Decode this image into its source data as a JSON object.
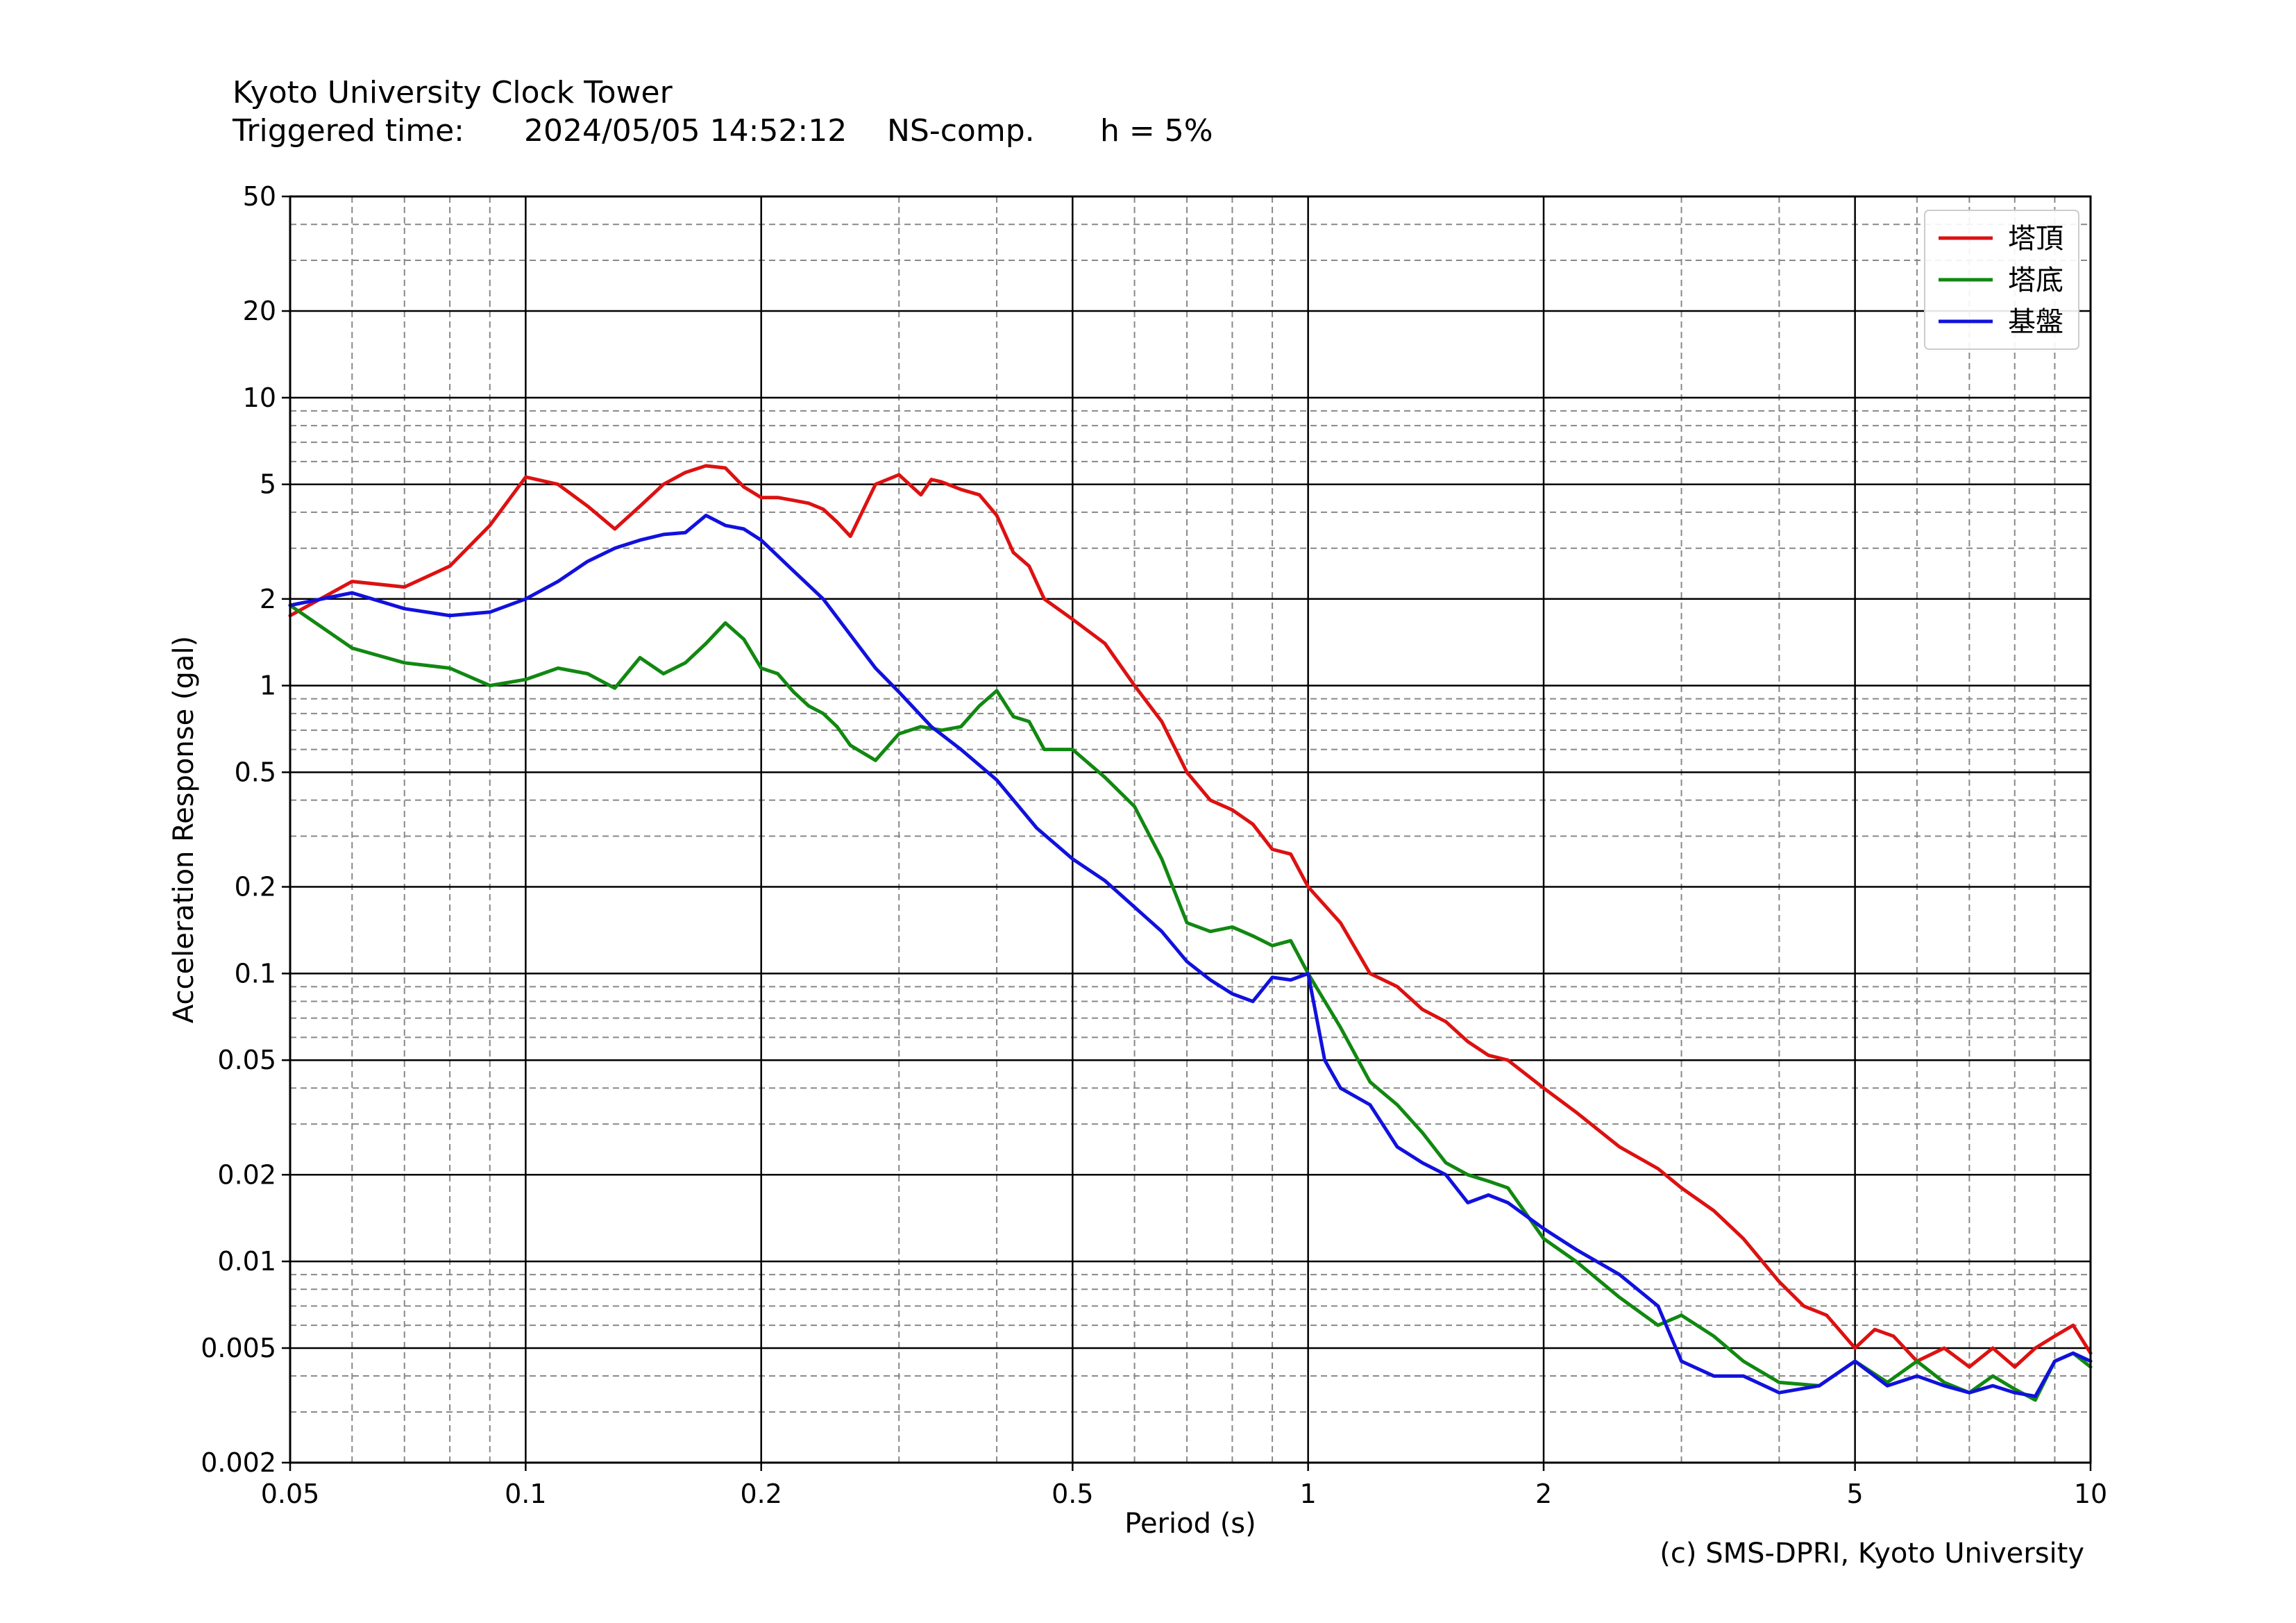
{
  "header": {
    "station": "Kyoto University Clock Tower",
    "triggered_label": "Triggered time:",
    "triggered_value": "2024/05/05 14:52:12",
    "component": "NS-comp.",
    "damping": "h = 5%"
  },
  "credit": "(c) SMS-DPRI, Kyoto University",
  "chart_data": {
    "type": "line",
    "title": "",
    "xlabel": "Period (s)",
    "ylabel": "Acceleration Response (gal)",
    "xscale": "log",
    "yscale": "log",
    "xlim": [
      0.05,
      10
    ],
    "ylim": [
      0.002,
      50
    ],
    "x_ticks": [
      {
        "value": 0.05,
        "label": "0.05"
      },
      {
        "value": 0.1,
        "label": "0.1"
      },
      {
        "value": 0.2,
        "label": "0.2"
      },
      {
        "value": 0.5,
        "label": "0.5"
      },
      {
        "value": 1,
        "label": "1"
      },
      {
        "value": 2,
        "label": "2"
      },
      {
        "value": 5,
        "label": "5"
      },
      {
        "value": 10,
        "label": "10"
      }
    ],
    "y_ticks": [
      {
        "value": 0.002,
        "label": "0.002"
      },
      {
        "value": 0.005,
        "label": "0.005"
      },
      {
        "value": 0.01,
        "label": "0.01"
      },
      {
        "value": 0.02,
        "label": "0.02"
      },
      {
        "value": 0.05,
        "label": "0.05"
      },
      {
        "value": 0.1,
        "label": "0.1"
      },
      {
        "value": 0.2,
        "label": "0.2"
      },
      {
        "value": 0.5,
        "label": "0.5"
      },
      {
        "value": 1,
        "label": "1"
      },
      {
        "value": 2,
        "label": "2"
      },
      {
        "value": 5,
        "label": "5"
      },
      {
        "value": 10,
        "label": "10"
      },
      {
        "value": 20,
        "label": "20"
      },
      {
        "value": 50,
        "label": "50"
      }
    ],
    "grid": true,
    "legend_position": "top-right",
    "series": [
      {
        "name": "塔頂",
        "color": "#dd1111",
        "x": [
          0.05,
          0.06,
          0.07,
          0.08,
          0.09,
          0.1,
          0.11,
          0.12,
          0.13,
          0.14,
          0.15,
          0.16,
          0.17,
          0.18,
          0.19,
          0.2,
          0.21,
          0.22,
          0.23,
          0.24,
          0.25,
          0.26,
          0.28,
          0.3,
          0.32,
          0.33,
          0.34,
          0.36,
          0.38,
          0.4,
          0.42,
          0.44,
          0.46,
          0.5,
          0.55,
          0.6,
          0.65,
          0.7,
          0.75,
          0.8,
          0.85,
          0.9,
          0.95,
          1.0,
          1.1,
          1.2,
          1.3,
          1.4,
          1.5,
          1.6,
          1.7,
          1.8,
          2.0,
          2.2,
          2.5,
          2.8,
          3.0,
          3.3,
          3.6,
          4.0,
          4.3,
          4.6,
          5.0,
          5.3,
          5.6,
          6.0,
          6.5,
          7.0,
          7.5,
          8.0,
          8.5,
          9.0,
          9.5,
          10.0
        ],
        "y": [
          1.75,
          2.3,
          2.2,
          2.6,
          3.6,
          5.3,
          5.0,
          4.2,
          3.5,
          4.2,
          5.0,
          5.5,
          5.8,
          5.7,
          4.9,
          4.5,
          4.5,
          4.4,
          4.3,
          4.1,
          3.7,
          3.3,
          5.0,
          5.4,
          4.6,
          5.2,
          5.1,
          4.8,
          4.6,
          3.9,
          2.9,
          2.6,
          2.0,
          1.7,
          1.4,
          1.0,
          0.75,
          0.5,
          0.4,
          0.37,
          0.33,
          0.27,
          0.26,
          0.2,
          0.15,
          0.1,
          0.09,
          0.075,
          0.068,
          0.058,
          0.052,
          0.05,
          0.04,
          0.033,
          0.025,
          0.021,
          0.018,
          0.015,
          0.012,
          0.0085,
          0.007,
          0.0065,
          0.005,
          0.0058,
          0.0055,
          0.0045,
          0.005,
          0.0043,
          0.005,
          0.0043,
          0.005,
          0.0055,
          0.006,
          0.0048
        ]
      },
      {
        "name": "塔底",
        "color": "#118811",
        "x": [
          0.05,
          0.06,
          0.07,
          0.08,
          0.09,
          0.1,
          0.11,
          0.12,
          0.13,
          0.14,
          0.15,
          0.16,
          0.17,
          0.18,
          0.19,
          0.2,
          0.21,
          0.22,
          0.23,
          0.24,
          0.25,
          0.26,
          0.28,
          0.3,
          0.32,
          0.34,
          0.36,
          0.38,
          0.4,
          0.42,
          0.44,
          0.46,
          0.5,
          0.55,
          0.6,
          0.65,
          0.7,
          0.75,
          0.8,
          0.85,
          0.9,
          0.95,
          1.0,
          1.1,
          1.2,
          1.3,
          1.4,
          1.5,
          1.6,
          1.7,
          1.8,
          2.0,
          2.2,
          2.5,
          2.8,
          3.0,
          3.3,
          3.6,
          4.0,
          4.5,
          5.0,
          5.5,
          6.0,
          6.5,
          7.0,
          7.5,
          8.0,
          8.5,
          9.0,
          9.5,
          10.0
        ],
        "y": [
          1.9,
          1.35,
          1.2,
          1.15,
          1.0,
          1.05,
          1.15,
          1.1,
          0.98,
          1.25,
          1.1,
          1.2,
          1.4,
          1.65,
          1.45,
          1.15,
          1.1,
          0.95,
          0.85,
          0.8,
          0.72,
          0.62,
          0.55,
          0.68,
          0.72,
          0.7,
          0.72,
          0.85,
          0.96,
          0.78,
          0.75,
          0.6,
          0.6,
          0.48,
          0.38,
          0.25,
          0.15,
          0.14,
          0.145,
          0.135,
          0.125,
          0.13,
          0.1,
          0.065,
          0.042,
          0.035,
          0.028,
          0.022,
          0.02,
          0.019,
          0.018,
          0.012,
          0.01,
          0.0075,
          0.006,
          0.0065,
          0.0055,
          0.0045,
          0.0038,
          0.0037,
          0.0045,
          0.0038,
          0.0045,
          0.0038,
          0.0035,
          0.004,
          0.0036,
          0.0033,
          0.0045,
          0.0048,
          0.0043
        ]
      },
      {
        "name": "基盤",
        "color": "#1111dd",
        "x": [
          0.05,
          0.06,
          0.07,
          0.08,
          0.09,
          0.1,
          0.11,
          0.12,
          0.13,
          0.14,
          0.15,
          0.16,
          0.17,
          0.18,
          0.19,
          0.2,
          0.22,
          0.24,
          0.26,
          0.28,
          0.3,
          0.33,
          0.36,
          0.4,
          0.45,
          0.5,
          0.55,
          0.6,
          0.65,
          0.7,
          0.75,
          0.8,
          0.85,
          0.9,
          0.95,
          1.0,
          1.05,
          1.1,
          1.2,
          1.3,
          1.4,
          1.5,
          1.6,
          1.7,
          1.8,
          2.0,
          2.2,
          2.5,
          2.8,
          3.0,
          3.3,
          3.6,
          4.0,
          4.5,
          5.0,
          5.5,
          6.0,
          6.5,
          7.0,
          7.5,
          8.0,
          8.5,
          9.0,
          9.5,
          10.0
        ],
        "y": [
          1.9,
          2.1,
          1.85,
          1.75,
          1.8,
          2.0,
          2.3,
          2.7,
          3.0,
          3.2,
          3.35,
          3.4,
          3.9,
          3.6,
          3.5,
          3.2,
          2.5,
          2.0,
          1.5,
          1.15,
          0.95,
          0.72,
          0.6,
          0.47,
          0.32,
          0.25,
          0.21,
          0.17,
          0.14,
          0.11,
          0.095,
          0.085,
          0.08,
          0.097,
          0.095,
          0.1,
          0.05,
          0.04,
          0.035,
          0.025,
          0.022,
          0.02,
          0.016,
          0.017,
          0.016,
          0.013,
          0.011,
          0.009,
          0.007,
          0.0045,
          0.004,
          0.004,
          0.0035,
          0.0037,
          0.0045,
          0.0037,
          0.004,
          0.0037,
          0.0035,
          0.0037,
          0.0035,
          0.0034,
          0.0045,
          0.0048,
          0.0045
        ]
      }
    ]
  }
}
